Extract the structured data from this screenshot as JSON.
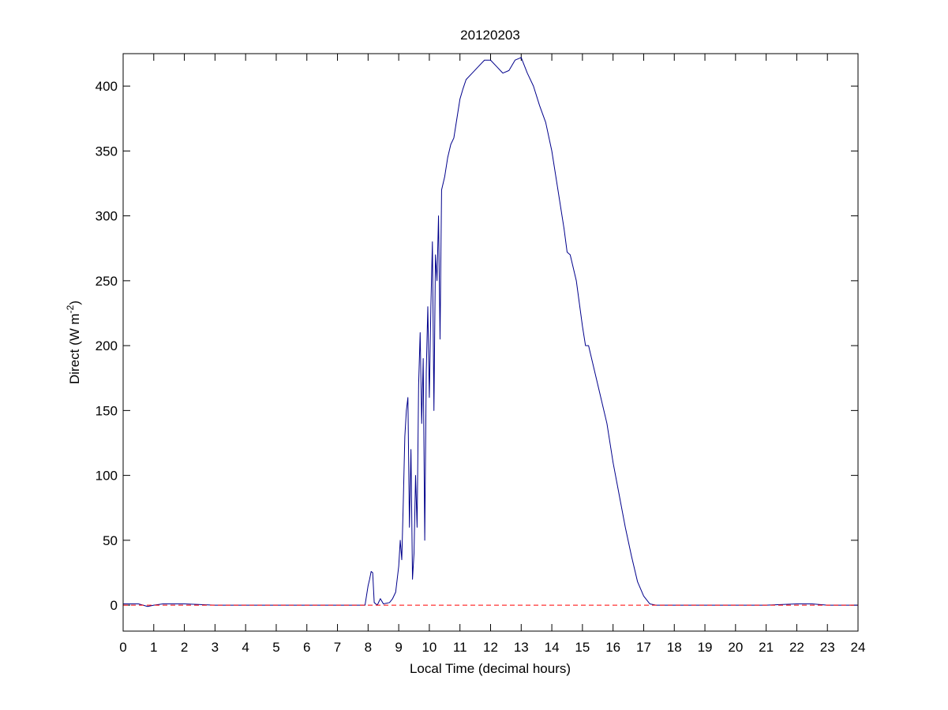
{
  "chart_data": {
    "type": "line",
    "title": "20120203",
    "xlabel": "Local Time (decimal hours)",
    "ylabel_parts": [
      "Direct (W m",
      "-2",
      ")"
    ],
    "color": "#00008b",
    "reference_line": {
      "value": 0,
      "color": "#ff0000",
      "dashed": true
    },
    "xlim": [
      0,
      24
    ],
    "ylim": [
      -20,
      425
    ],
    "xticks": [
      0,
      1,
      2,
      3,
      4,
      5,
      6,
      7,
      8,
      9,
      10,
      11,
      12,
      13,
      14,
      15,
      16,
      17,
      18,
      19,
      20,
      21,
      22,
      23,
      24
    ],
    "yticks": [
      0,
      50,
      100,
      150,
      200,
      250,
      300,
      350,
      400
    ],
    "grid": false,
    "x": [
      0,
      0.5,
      0.8,
      1,
      1.3,
      2,
      3,
      4,
      5,
      6,
      7,
      7.5,
      7.9,
      8.0,
      8.05,
      8.1,
      8.15,
      8.2,
      8.3,
      8.4,
      8.5,
      8.7,
      8.8,
      8.9,
      9.0,
      9.05,
      9.1,
      9.15,
      9.2,
      9.25,
      9.3,
      9.35,
      9.4,
      9.45,
      9.5,
      9.55,
      9.6,
      9.65,
      9.7,
      9.75,
      9.8,
      9.85,
      9.9,
      9.95,
      10.0,
      10.05,
      10.1,
      10.15,
      10.2,
      10.25,
      10.3,
      10.35,
      10.4,
      10.5,
      10.6,
      10.7,
      10.8,
      10.9,
      11.0,
      11.1,
      11.2,
      11.4,
      11.6,
      11.8,
      12.0,
      12.2,
      12.4,
      12.6,
      12.8,
      13.0,
      13.2,
      13.4,
      13.6,
      13.8,
      14.0,
      14.2,
      14.4,
      14.5,
      14.6,
      14.8,
      15.0,
      15.1,
      15.2,
      15.4,
      15.6,
      15.8,
      16.0,
      16.2,
      16.4,
      16.6,
      16.8,
      17.0,
      17.2,
      17.4,
      18,
      19,
      20,
      21,
      22,
      22.5,
      23,
      24
    ],
    "values": [
      1,
      1,
      -1,
      0,
      1,
      1,
      0,
      0,
      0,
      0,
      0,
      0,
      0,
      15,
      20,
      26,
      25,
      2,
      0,
      5,
      1,
      2,
      5,
      10,
      30,
      50,
      35,
      80,
      130,
      150,
      160,
      60,
      120,
      20,
      40,
      100,
      60,
      170,
      210,
      140,
      190,
      50,
      180,
      230,
      160,
      230,
      280,
      150,
      270,
      250,
      300,
      205,
      320,
      330,
      345,
      355,
      360,
      375,
      390,
      398,
      405,
      410,
      415,
      420,
      420,
      415,
      410,
      412,
      420,
      422,
      410,
      400,
      385,
      372,
      350,
      320,
      290,
      272,
      270,
      250,
      215,
      200,
      200,
      180,
      160,
      140,
      110,
      85,
      60,
      38,
      18,
      7,
      1,
      0,
      0,
      0,
      0,
      0,
      1,
      1,
      0,
      0
    ]
  }
}
